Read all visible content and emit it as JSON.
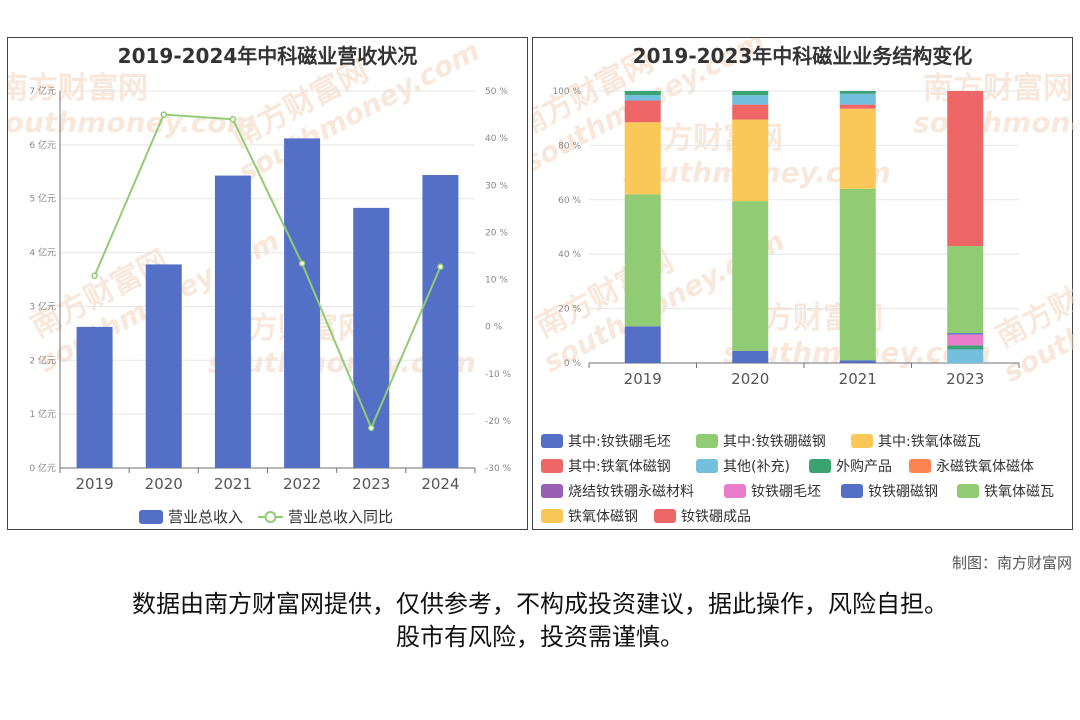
{
  "watermark": "南方财富网",
  "watermark_url": "southmoney.com",
  "credit": "制图：南方财富网",
  "disclaimer_line1": "数据由南方财富网提供，仅供参考，不构成投资建议，据此操作，风险自担。",
  "disclaimer_line2": "股市有风险，投资需谨慎。",
  "chart_data": [
    {
      "type": "bar",
      "title": "2019-2024年中科磁业营收状况",
      "categories": [
        "2019",
        "2020",
        "2021",
        "2022",
        "2023",
        "2024"
      ],
      "left_axis": {
        "ticks": [
          "0 亿元",
          "1 亿元",
          "2 亿元",
          "3 亿元",
          "4 亿元",
          "5 亿元",
          "6 亿元",
          "7 亿元"
        ],
        "ylim": [
          0,
          7
        ]
      },
      "right_axis": {
        "ticks": [
          "-30 %",
          "-20 %",
          "-10 %",
          "0 %",
          "10 %",
          "20 %",
          "30 %",
          "40 %",
          "50 %"
        ],
        "ylim": [
          -30,
          50
        ]
      },
      "series": [
        {
          "name": "营业总收入",
          "kind": "bar",
          "axis": "left",
          "color": "#5470c6",
          "values": [
            2.62,
            3.78,
            5.43,
            6.12,
            4.83,
            5.44
          ]
        },
        {
          "name": "营业总收入同比",
          "kind": "line",
          "axis": "right",
          "color": "#91cc75",
          "values": [
            10.8,
            45.0,
            44.0,
            13.4,
            -21.5,
            12.7
          ]
        }
      ],
      "legend_position": "bottom",
      "grid": true
    },
    {
      "type": "bar",
      "stacked": true,
      "title": "2019-2023年中科磁业业务结构变化",
      "categories": [
        "2019",
        "2020",
        "2021",
        "2023"
      ],
      "y_ticks": [
        "0 %",
        "20 %",
        "40 %",
        "60 %",
        "80 %",
        "100 %"
      ],
      "ylim": [
        0,
        100
      ],
      "series": [
        {
          "name": "其中:钕铁硼毛坯",
          "color": "#5470c6",
          "values": [
            13.5,
            4.5,
            1.0,
            0
          ]
        },
        {
          "name": "其中:钕铁硼磁钢",
          "color": "#91cc75",
          "values": [
            48.5,
            55.0,
            63.0,
            0
          ]
        },
        {
          "name": "其中:铁氧体磁瓦",
          "color": "#fac858",
          "values": [
            26.5,
            30.0,
            29.5,
            0
          ]
        },
        {
          "name": "其中:铁氧体磁钢",
          "color": "#ee6666",
          "values": [
            8.0,
            5.5,
            1.5,
            0
          ]
        },
        {
          "name": "其他(补充)",
          "color": "#73c0de",
          "values": [
            2.0,
            3.5,
            4.0,
            5.0
          ]
        },
        {
          "name": "外购产品",
          "color": "#3ba272",
          "values": [
            1.5,
            1.5,
            1.0,
            1.5
          ]
        },
        {
          "name": "永磁铁氧体磁体",
          "color": "#fc8452",
          "values": [
            0,
            0,
            0,
            0
          ]
        },
        {
          "name": "烧结钕铁硼永磁材料",
          "color": "#9a60b4",
          "values": [
            0,
            0,
            0,
            0
          ]
        },
        {
          "name": "钕铁硼毛坯",
          "color": "#ea7ccc",
          "values": [
            0,
            0,
            0,
            4.0
          ]
        },
        {
          "name": "钕铁硼磁钢",
          "color": "#5470c6",
          "values": [
            0,
            0,
            0,
            0.5
          ]
        },
        {
          "name": "铁氧体磁瓦",
          "color": "#91cc75",
          "values": [
            0,
            0,
            0,
            32.0
          ]
        },
        {
          "name": "铁氧体磁钢",
          "color": "#fac858",
          "values": [
            0,
            0,
            0,
            0
          ]
        },
        {
          "name": "钕铁硼成品",
          "color": "#ee6666",
          "values": [
            0,
            0,
            0,
            57.0
          ]
        }
      ],
      "legend_position": "bottom",
      "grid": true
    }
  ]
}
